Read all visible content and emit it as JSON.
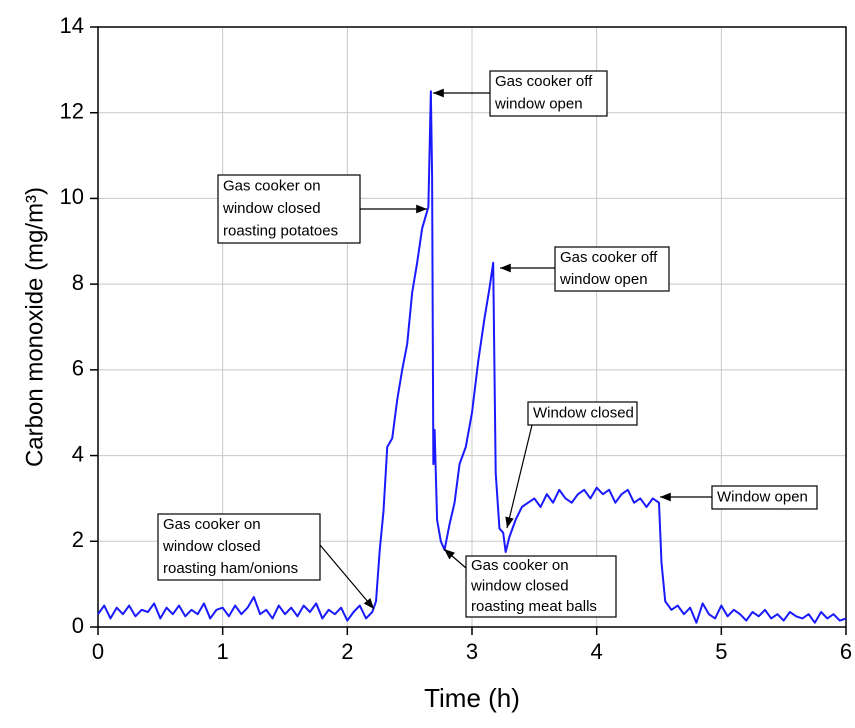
{
  "chart_data": {
    "type": "line",
    "xlabel": "Time (h)",
    "ylabel": "Carbon monoxide (mg/m³)",
    "xlim": [
      0,
      6
    ],
    "xticks": [
      0,
      1,
      2,
      3,
      4,
      5,
      6
    ],
    "ylim": [
      0,
      14
    ],
    "yticks": [
      0,
      2,
      4,
      6,
      8,
      10,
      12,
      14
    ],
    "grid": true,
    "x": [
      0,
      0.05,
      0.1,
      0.15,
      0.2,
      0.25,
      0.3,
      0.35,
      0.4,
      0.45,
      0.5,
      0.55,
      0.6,
      0.65,
      0.7,
      0.75,
      0.8,
      0.85,
      0.9,
      0.95,
      1.0,
      1.05,
      1.1,
      1.15,
      1.2,
      1.25,
      1.3,
      1.35,
      1.4,
      1.45,
      1.5,
      1.55,
      1.6,
      1.65,
      1.7,
      1.75,
      1.8,
      1.85,
      1.9,
      1.95,
      2.0,
      2.05,
      2.1,
      2.15,
      2.2,
      2.23,
      2.26,
      2.29,
      2.32,
      2.36,
      2.4,
      2.44,
      2.48,
      2.52,
      2.56,
      2.6,
      2.63,
      2.65,
      2.67,
      2.68,
      2.69,
      2.7,
      2.72,
      2.75,
      2.78,
      2.82,
      2.86,
      2.9,
      2.95,
      3.0,
      3.05,
      3.1,
      3.14,
      3.17,
      3.19,
      3.22,
      3.25,
      3.27,
      3.3,
      3.35,
      3.4,
      3.45,
      3.5,
      3.55,
      3.6,
      3.65,
      3.7,
      3.75,
      3.8,
      3.85,
      3.9,
      3.95,
      4.0,
      4.05,
      4.1,
      4.15,
      4.2,
      4.25,
      4.3,
      4.35,
      4.4,
      4.45,
      4.5,
      4.52,
      4.55,
      4.6,
      4.65,
      4.7,
      4.75,
      4.8,
      4.85,
      4.9,
      4.95,
      5.0,
      5.05,
      5.1,
      5.15,
      5.2,
      5.25,
      5.3,
      5.35,
      5.4,
      5.45,
      5.5,
      5.55,
      5.6,
      5.65,
      5.7,
      5.75,
      5.8,
      5.85,
      5.9,
      5.95,
      6.0
    ],
    "series": [
      {
        "color": "#1a1aff",
        "values": [
          0.3,
          0.5,
          0.2,
          0.45,
          0.3,
          0.5,
          0.25,
          0.4,
          0.35,
          0.55,
          0.2,
          0.45,
          0.3,
          0.5,
          0.25,
          0.4,
          0.3,
          0.55,
          0.2,
          0.4,
          0.45,
          0.25,
          0.5,
          0.3,
          0.45,
          0.7,
          0.3,
          0.4,
          0.2,
          0.5,
          0.3,
          0.45,
          0.25,
          0.5,
          0.35,
          0.55,
          0.2,
          0.4,
          0.3,
          0.45,
          0.15,
          0.35,
          0.5,
          0.2,
          0.35,
          0.6,
          1.8,
          2.7,
          4.2,
          4.4,
          5.3,
          6.0,
          6.6,
          7.8,
          8.5,
          9.3,
          9.6,
          9.8,
          12.5,
          10.5,
          3.8,
          4.6,
          2.5,
          2.0,
          1.8,
          2.4,
          2.9,
          3.8,
          4.2,
          5.0,
          6.2,
          7.2,
          7.9,
          8.5,
          3.6,
          2.3,
          2.2,
          1.75,
          2.1,
          2.5,
          2.8,
          2.9,
          3.0,
          2.8,
          3.1,
          2.9,
          3.2,
          3.0,
          2.9,
          3.1,
          3.2,
          3.0,
          3.25,
          3.1,
          3.2,
          2.9,
          3.1,
          3.2,
          2.9,
          3.0,
          2.8,
          3.0,
          2.9,
          1.5,
          0.6,
          0.4,
          0.5,
          0.3,
          0.45,
          0.1,
          0.55,
          0.3,
          0.2,
          0.5,
          0.25,
          0.4,
          0.3,
          0.15,
          0.35,
          0.25,
          0.4,
          0.2,
          0.3,
          0.15,
          0.35,
          0.25,
          0.2,
          0.3,
          0.1,
          0.35,
          0.2,
          0.3,
          0.15,
          0.2
        ]
      }
    ],
    "annotations": [
      [
        "Gas cooker on",
        "window closed",
        "roasting ham/onions"
      ],
      [
        "Gas cooker on",
        "window closed",
        "roasting potatoes"
      ],
      [
        "Gas cooker off",
        "window open"
      ],
      [
        "Gas cooker off",
        "window open"
      ],
      [
        "Window closed"
      ],
      [
        "Gas cooker on",
        "window closed",
        "roasting meat balls"
      ],
      [
        "Window open"
      ]
    ]
  }
}
